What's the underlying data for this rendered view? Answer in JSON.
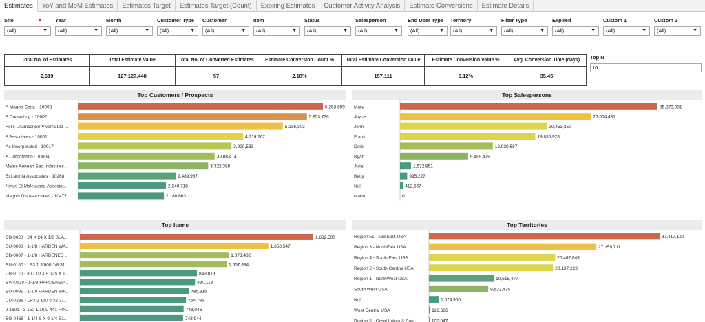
{
  "tabs": [
    {
      "label": "Estimates",
      "active": true
    },
    {
      "label": "YoY and MoM Estimates",
      "active": false
    },
    {
      "label": "Estimates Target",
      "active": false
    },
    {
      "label": "Estimates Target (Count)",
      "active": false
    },
    {
      "label": "Expiring Estimates",
      "active": false
    },
    {
      "label": "Customer Activity Analysis",
      "active": false
    },
    {
      "label": "Estimate Conversions",
      "active": false
    },
    {
      "label": "Estimate Details",
      "active": false
    }
  ],
  "filters": [
    {
      "label": "Site",
      "value": "(All)"
    },
    {
      "label": "Year",
      "value": "(All)"
    },
    {
      "label": "Month",
      "value": "(All)"
    },
    {
      "label": "Customer Type",
      "value": "(All)"
    },
    {
      "label": "Customer",
      "value": "(All)"
    },
    {
      "label": "Item",
      "value": "(All)"
    },
    {
      "label": "Status",
      "value": "(All)"
    },
    {
      "label": "Salesperson",
      "value": "(All)"
    },
    {
      "label": "End User Type",
      "value": "(All)"
    },
    {
      "label": "Territory",
      "value": "(All)"
    },
    {
      "label": "Filter Type",
      "value": "(All)"
    },
    {
      "label": "Expired",
      "value": "(All)"
    },
    {
      "label": "Custom 1",
      "value": "(All)"
    },
    {
      "label": "Custom 2",
      "value": "(All)"
    }
  ],
  "kpis": [
    {
      "label": "Total No. of Estimates",
      "value": "2,619"
    },
    {
      "label": "Total Estimate Value",
      "value": "127,127,448"
    },
    {
      "label": "Total No. of Converted Estimates",
      "value": "57"
    },
    {
      "label": "Estimate Conversion Count %",
      "value": "2.18%"
    },
    {
      "label": "Total Estimate Conversion Value",
      "value": "157,111"
    },
    {
      "label": "Estimate Conversion Value %",
      "value": "0.12%"
    },
    {
      "label": "Avg. Conversion Time (days)",
      "value": "35.45"
    }
  ],
  "topn": {
    "label": "Top N",
    "value": "10"
  },
  "panels": {
    "customers": {
      "title": "Top Customers / Prospects",
      "items": [
        {
          "label": "A Magna Corp. - 10008",
          "value": 6263699,
          "display": "6,263,699",
          "color": "#c9684d"
        },
        {
          "label": "A Consulting - 10002",
          "value": 5853736,
          "display": "5,853,736",
          "color": "#d9924b"
        },
        {
          "label": "Felis Ullamcorper Viverra Ltd -..",
          "value": 5236303,
          "display": "5,236,303",
          "color": "#ecc145"
        },
        {
          "label": "A Associates - 10001",
          "value": 4219762,
          "display": "4,219,762",
          "color": "#e2d34d"
        },
        {
          "label": "Ac Incorporated - 10017",
          "value": 3920533,
          "display": "3,920,533",
          "color": "#b6c853"
        },
        {
          "label": "A Corporation - 10004",
          "value": 3488414,
          "display": "3,488,414",
          "color": "#a4bd5a"
        },
        {
          "label": "Metus Aenean Sed Industries ..",
          "value": 3322388,
          "display": "3,322,388",
          "color": "#8cb366"
        },
        {
          "label": "Et Lacinia Associates - 10268",
          "value": 2489987,
          "display": "2,489,987",
          "color": "#5aa07a"
        },
        {
          "label": "Netus Et Malesuada Associat..",
          "value": 2240718,
          "display": "2,240,718",
          "color": "#4b9a80"
        },
        {
          "label": "Magnis Dis Associates - 10477",
          "value": 2188663,
          "display": "2,188,663",
          "color": "#4b9a80"
        }
      ]
    },
    "salespersons": {
      "title": "Top Salespersons",
      "items": [
        {
          "label": "Mary",
          "value": 35873031,
          "display": "35,873,031",
          "color": "#c9684d"
        },
        {
          "label": "Joyce",
          "value": 26604431,
          "display": "26,604,431",
          "color": "#ecc145"
        },
        {
          "label": "John",
          "value": 20453350,
          "display": "20,453,350",
          "color": "#e2d34d"
        },
        {
          "label": "Frank",
          "value": 18835923,
          "display": "18,835,923",
          "color": "#dcd44f"
        },
        {
          "label": "Doris",
          "value": 12930587,
          "display": "12,930,587",
          "color": "#a4bd5a"
        },
        {
          "label": "Ryan",
          "value": 9489479,
          "display": "9,489,479",
          "color": "#8cb366"
        },
        {
          "label": "Julia",
          "value": 1532851,
          "display": "1,532,851",
          "color": "#4b9a80"
        },
        {
          "label": "Betty",
          "value": 995227,
          "display": "995,227",
          "color": "#4b9a80"
        },
        {
          "label": "Null",
          "value": 412567,
          "display": "412,567",
          "color": "#4b9a80"
        },
        {
          "label": "Maria",
          "value": 0,
          "display": "0",
          "color": "#4b9a80"
        }
      ]
    },
    "items": {
      "title": "Top Items",
      "items": [
        {
          "label": "CB-0023 - 24 X 24 X 1/8 BLA..",
          "value": 1682500,
          "display": "1,682,500",
          "color": "#c9684d"
        },
        {
          "label": "BU-0098 - 1-1/8 HARDEN WA..",
          "value": 1358547,
          "display": "1,358,547",
          "color": "#ecc145"
        },
        {
          "label": "CB-0007 - 1-1/8 HARDENED ..",
          "value": 1073482,
          "display": "1,073,482",
          "color": "#a4bd5a"
        },
        {
          "label": "BU-0180 - LP3 1 3/600 1/8 31..",
          "value": 1057934,
          "display": "1,057,934",
          "color": "#a4bd5a"
        },
        {
          "label": "CB-0110 - 300 10 X 9.125 X 1..",
          "value": 843813,
          "display": "843,813",
          "color": "#4b9a80"
        },
        {
          "label": "BW-0528 - 1-1/8 HARDENED ..",
          "value": 830113,
          "display": "830,113",
          "color": "#4b9a80"
        },
        {
          "label": "BU-0091 - 1-1/8 HARDEN WA..",
          "value": 785316,
          "display": "785,316",
          "color": "#4b9a80"
        },
        {
          "label": "CD-0238 - LP3 2 150 5/32 31..",
          "value": 764796,
          "display": "764,796",
          "color": "#4b9a80"
        },
        {
          "label": "J-1601 - 3 150 1/16 L-441 RIN..",
          "value": 748046,
          "display": "748,046",
          "color": "#4b9a80"
        },
        {
          "label": "BG-0468 - 1-1/4-8 X 9-1/4 B1..",
          "value": 743944,
          "display": "743,944",
          "color": "#4b9a80"
        }
      ]
    },
    "territories": {
      "title": "Top Territories",
      "items": [
        {
          "label": "Region 51 - Mid East USA",
          "value": 37417120,
          "display": "37,417,120",
          "color": "#c9684d"
        },
        {
          "label": "Region 3 - NorthEast USA",
          "value": 27159711,
          "display": "27,159,711",
          "color": "#ecc145"
        },
        {
          "label": "Region 4 - South East USA",
          "value": 20467849,
          "display": "20,467,849",
          "color": "#e2d34d"
        },
        {
          "label": "Region 2 - South Central USA",
          "value": 20137223,
          "display": "20,137,223",
          "color": "#dcd44f"
        },
        {
          "label": "Region 1 - NorthWest USA",
          "value": 10518477,
          "display": "10,518,477",
          "color": "#5aa07a"
        },
        {
          "label": "South West USA",
          "value": 9623435,
          "display": "9,623,435",
          "color": "#8cb366"
        },
        {
          "label": "Null",
          "value": 1574900,
          "display": "1,574,900",
          "color": "#4b9a80"
        },
        {
          "label": "West Central USA",
          "value": 126686,
          "display": "126,686",
          "color": "#4b9a80"
        },
        {
          "label": "Region 5 - Great Lakes & Sou..",
          "value": 102047,
          "display": "102,047",
          "color": "#4b9a80"
        }
      ]
    }
  }
}
